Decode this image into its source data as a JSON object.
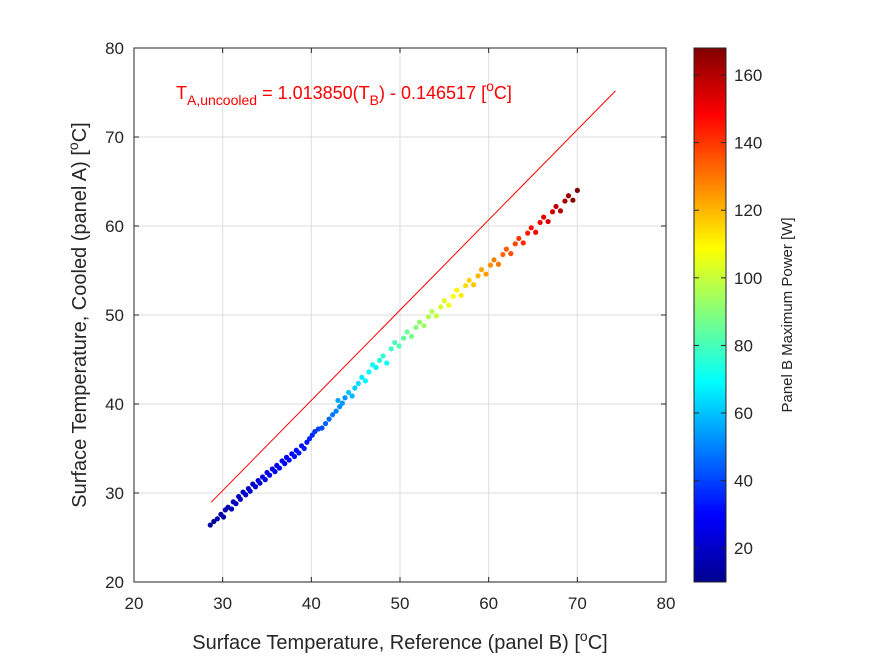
{
  "chart_data": {
    "type": "scatter",
    "xlabel": "Surface Temperature, Reference (panel B) [°C]",
    "ylabel": "Surface Temperature, Cooled (panel A) [°C]",
    "xlabel_parts": {
      "main": "Surface Temperature, Reference (panel B) [",
      "sup": "o",
      "tail": "C]"
    },
    "ylabel_parts": {
      "main": "Surface Temperature, Cooled (panel A) [",
      "sup": "o",
      "tail": "C]"
    },
    "xlim": [
      20,
      80
    ],
    "ylim": [
      20,
      80
    ],
    "xticks": [
      20,
      30,
      40,
      50,
      60,
      70,
      80
    ],
    "yticks": [
      20,
      30,
      40,
      50,
      60,
      70,
      80
    ],
    "grid": true,
    "annotation": {
      "text": "T_A,uncooled = 1.013850(T_B) - 0.146517 [°C]",
      "parts": {
        "T": "T",
        "sub_a": "A,uncooled",
        "mid": " = 1.013850(T",
        "sub_b": "B",
        "end": ") - 0.146517   [",
        "sup": "o",
        "unit": "C]"
      },
      "color": "#ff0000"
    },
    "fit_line": {
      "slope": 1.01385,
      "intercept": -0.146517,
      "x_range": [
        28.7,
        74.3
      ],
      "color": "#ff0000"
    },
    "colorbar": {
      "label": "Panel B Maximum Power [W]",
      "range": [
        10,
        168
      ],
      "ticks": [
        20,
        40,
        60,
        80,
        100,
        120,
        140,
        160
      ],
      "colormap": "jet"
    },
    "points": [
      {
        "x": 28.6,
        "y": 26.4,
        "c": 15
      },
      {
        "x": 29.0,
        "y": 26.8,
        "c": 14
      },
      {
        "x": 29.4,
        "y": 27.1,
        "c": 16
      },
      {
        "x": 29.8,
        "y": 27.6,
        "c": 15
      },
      {
        "x": 30.1,
        "y": 27.3,
        "c": 17
      },
      {
        "x": 30.3,
        "y": 28.1,
        "c": 18
      },
      {
        "x": 30.6,
        "y": 28.4,
        "c": 17
      },
      {
        "x": 31.0,
        "y": 28.2,
        "c": 19
      },
      {
        "x": 31.2,
        "y": 29.0,
        "c": 18
      },
      {
        "x": 31.5,
        "y": 28.8,
        "c": 20
      },
      {
        "x": 31.8,
        "y": 29.6,
        "c": 19
      },
      {
        "x": 32.0,
        "y": 29.3,
        "c": 21
      },
      {
        "x": 32.3,
        "y": 30.1,
        "c": 20
      },
      {
        "x": 32.6,
        "y": 29.8,
        "c": 22
      },
      {
        "x": 32.9,
        "y": 30.5,
        "c": 21
      },
      {
        "x": 33.1,
        "y": 30.2,
        "c": 23
      },
      {
        "x": 33.4,
        "y": 31.0,
        "c": 22
      },
      {
        "x": 33.7,
        "y": 30.7,
        "c": 24
      },
      {
        "x": 34.0,
        "y": 31.4,
        "c": 23
      },
      {
        "x": 34.2,
        "y": 31.1,
        "c": 25
      },
      {
        "x": 34.5,
        "y": 31.8,
        "c": 24
      },
      {
        "x": 34.8,
        "y": 31.5,
        "c": 26
      },
      {
        "x": 35.0,
        "y": 32.3,
        "c": 25
      },
      {
        "x": 35.3,
        "y": 32.0,
        "c": 27
      },
      {
        "x": 35.6,
        "y": 32.7,
        "c": 26
      },
      {
        "x": 35.9,
        "y": 32.4,
        "c": 28
      },
      {
        "x": 36.1,
        "y": 33.1,
        "c": 27
      },
      {
        "x": 36.4,
        "y": 32.8,
        "c": 29
      },
      {
        "x": 36.7,
        "y": 33.6,
        "c": 28
      },
      {
        "x": 37.0,
        "y": 33.3,
        "c": 30
      },
      {
        "x": 37.2,
        "y": 34.0,
        "c": 29
      },
      {
        "x": 37.5,
        "y": 33.7,
        "c": 31
      },
      {
        "x": 37.8,
        "y": 34.4,
        "c": 30
      },
      {
        "x": 38.1,
        "y": 34.1,
        "c": 32
      },
      {
        "x": 38.3,
        "y": 34.8,
        "c": 31
      },
      {
        "x": 38.6,
        "y": 34.5,
        "c": 33
      },
      {
        "x": 38.9,
        "y": 35.3,
        "c": 32
      },
      {
        "x": 39.2,
        "y": 35.0,
        "c": 34
      },
      {
        "x": 39.5,
        "y": 35.7,
        "c": 33
      },
      {
        "x": 39.8,
        "y": 36.1,
        "c": 35
      },
      {
        "x": 40.1,
        "y": 36.5,
        "c": 36
      },
      {
        "x": 40.4,
        "y": 36.9,
        "c": 38
      },
      {
        "x": 40.8,
        "y": 37.2,
        "c": 40
      },
      {
        "x": 41.2,
        "y": 37.3,
        "c": 42
      },
      {
        "x": 41.6,
        "y": 37.8,
        "c": 44
      },
      {
        "x": 42.0,
        "y": 38.3,
        "c": 46
      },
      {
        "x": 42.4,
        "y": 38.8,
        "c": 48
      },
      {
        "x": 42.8,
        "y": 39.2,
        "c": 50
      },
      {
        "x": 43.2,
        "y": 39.7,
        "c": 52
      },
      {
        "x": 43.5,
        "y": 40.1,
        "c": 54
      },
      {
        "x": 43.0,
        "y": 40.4,
        "c": 56
      },
      {
        "x": 43.8,
        "y": 40.7,
        "c": 53
      },
      {
        "x": 44.2,
        "y": 41.3,
        "c": 60
      },
      {
        "x": 44.6,
        "y": 40.9,
        "c": 58
      },
      {
        "x": 44.9,
        "y": 41.8,
        "c": 62
      },
      {
        "x": 45.3,
        "y": 42.3,
        "c": 64
      },
      {
        "x": 45.7,
        "y": 43.0,
        "c": 66
      },
      {
        "x": 46.1,
        "y": 42.6,
        "c": 68
      },
      {
        "x": 46.5,
        "y": 43.6,
        "c": 70
      },
      {
        "x": 46.9,
        "y": 44.4,
        "c": 72
      },
      {
        "x": 47.3,
        "y": 44.1,
        "c": 68
      },
      {
        "x": 47.7,
        "y": 44.9,
        "c": 74
      },
      {
        "x": 48.1,
        "y": 45.4,
        "c": 76
      },
      {
        "x": 48.5,
        "y": 44.6,
        "c": 70
      },
      {
        "x": 49.0,
        "y": 46.2,
        "c": 78
      },
      {
        "x": 49.4,
        "y": 46.9,
        "c": 80
      },
      {
        "x": 49.9,
        "y": 46.5,
        "c": 82
      },
      {
        "x": 50.4,
        "y": 47.4,
        "c": 84
      },
      {
        "x": 50.8,
        "y": 48.1,
        "c": 86
      },
      {
        "x": 51.3,
        "y": 47.6,
        "c": 88
      },
      {
        "x": 51.8,
        "y": 48.6,
        "c": 90
      },
      {
        "x": 52.2,
        "y": 49.2,
        "c": 92
      },
      {
        "x": 52.7,
        "y": 48.8,
        "c": 94
      },
      {
        "x": 53.2,
        "y": 49.8,
        "c": 96
      },
      {
        "x": 53.6,
        "y": 50.4,
        "c": 98
      },
      {
        "x": 54.1,
        "y": 49.9,
        "c": 100
      },
      {
        "x": 54.6,
        "y": 50.9,
        "c": 102
      },
      {
        "x": 55.0,
        "y": 51.6,
        "c": 104
      },
      {
        "x": 55.5,
        "y": 51.1,
        "c": 106
      },
      {
        "x": 56.0,
        "y": 52.1,
        "c": 108
      },
      {
        "x": 56.4,
        "y": 52.8,
        "c": 110
      },
      {
        "x": 56.9,
        "y": 52.2,
        "c": 112
      },
      {
        "x": 57.4,
        "y": 53.3,
        "c": 114
      },
      {
        "x": 57.8,
        "y": 53.9,
        "c": 116
      },
      {
        "x": 58.3,
        "y": 53.4,
        "c": 118
      },
      {
        "x": 58.8,
        "y": 54.4,
        "c": 120
      },
      {
        "x": 59.2,
        "y": 55.1,
        "c": 122
      },
      {
        "x": 59.7,
        "y": 54.6,
        "c": 124
      },
      {
        "x": 60.2,
        "y": 55.6,
        "c": 126
      },
      {
        "x": 60.6,
        "y": 56.2,
        "c": 128
      },
      {
        "x": 61.1,
        "y": 55.7,
        "c": 130
      },
      {
        "x": 61.6,
        "y": 56.8,
        "c": 132
      },
      {
        "x": 62.0,
        "y": 57.4,
        "c": 134
      },
      {
        "x": 62.5,
        "y": 56.9,
        "c": 136
      },
      {
        "x": 63.0,
        "y": 58.0,
        "c": 138
      },
      {
        "x": 63.4,
        "y": 58.6,
        "c": 140
      },
      {
        "x": 63.9,
        "y": 58.1,
        "c": 142
      },
      {
        "x": 64.4,
        "y": 59.2,
        "c": 144
      },
      {
        "x": 64.8,
        "y": 59.8,
        "c": 146
      },
      {
        "x": 65.3,
        "y": 59.3,
        "c": 148
      },
      {
        "x": 65.8,
        "y": 60.4,
        "c": 150
      },
      {
        "x": 66.2,
        "y": 61.0,
        "c": 152
      },
      {
        "x": 66.7,
        "y": 60.5,
        "c": 154
      },
      {
        "x": 67.2,
        "y": 61.6,
        "c": 156
      },
      {
        "x": 67.6,
        "y": 62.2,
        "c": 158
      },
      {
        "x": 68.1,
        "y": 61.7,
        "c": 160
      },
      {
        "x": 68.6,
        "y": 62.8,
        "c": 162
      },
      {
        "x": 69.0,
        "y": 63.4,
        "c": 164
      },
      {
        "x": 69.5,
        "y": 62.9,
        "c": 166
      },
      {
        "x": 70.0,
        "y": 64.0,
        "c": 168
      }
    ]
  }
}
